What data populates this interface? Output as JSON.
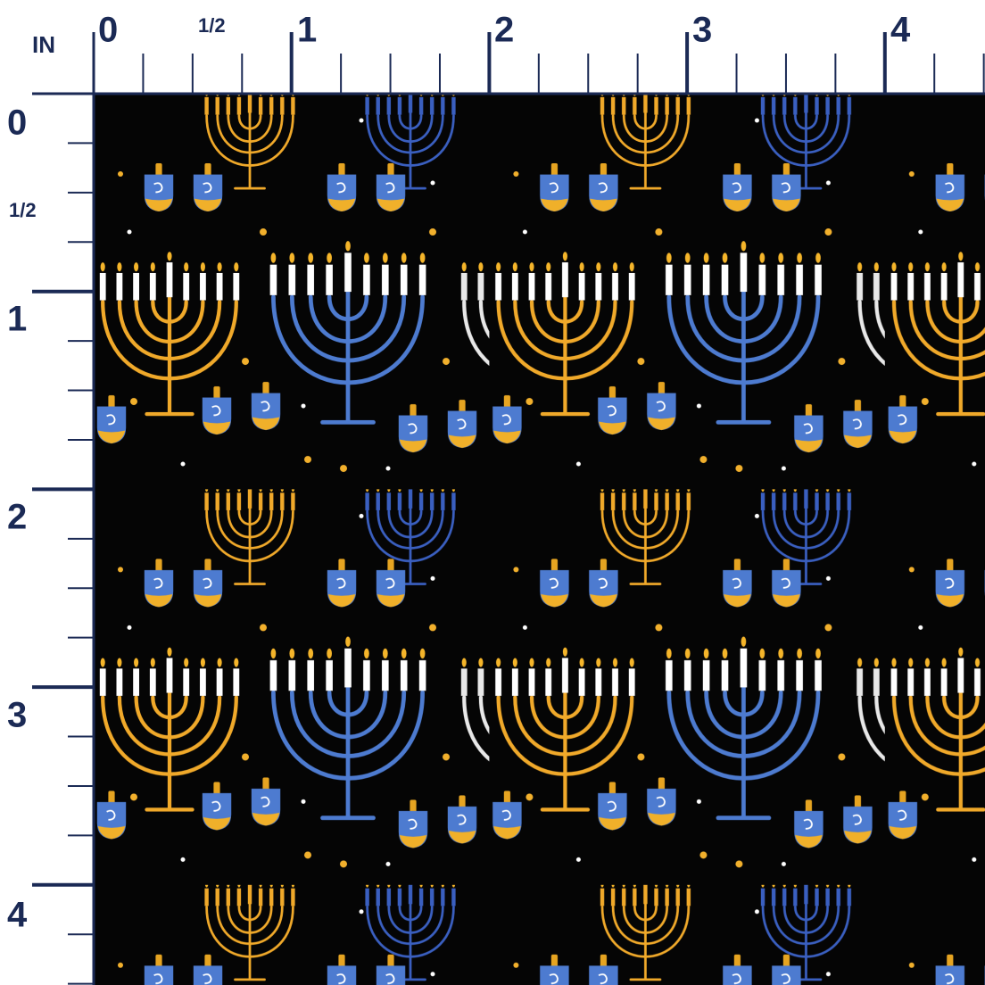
{
  "ruler": {
    "unit": "IN",
    "top_labels": [
      "0",
      "1/2",
      "1",
      "2",
      "3",
      "4"
    ],
    "left_labels": [
      "0",
      "1/2",
      "1",
      "2",
      "3",
      "4"
    ]
  }
}
